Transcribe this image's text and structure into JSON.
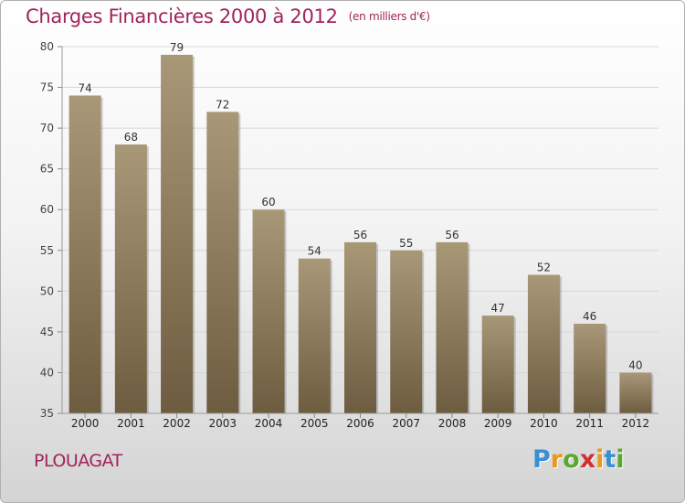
{
  "header": {
    "title": "Charges Financières 2000 à 2012",
    "subtitle": "(en milliers d'€)"
  },
  "commune": "PLOUAGAT",
  "logo": {
    "letters": [
      "P",
      "r",
      "o",
      "x",
      "i",
      "t",
      "i"
    ],
    "colors": [
      "#3a8fd0",
      "#e89a1c",
      "#5aa832",
      "#d23030",
      "#e89a1c",
      "#3a8fd0",
      "#5aa832"
    ]
  },
  "colors": {
    "title": "#a0245a",
    "bar_top": "#a89878",
    "bar_bottom": "#6e5c40"
  },
  "chart_data": {
    "type": "bar",
    "categories": [
      "2000",
      "2001",
      "2002",
      "2003",
      "2004",
      "2005",
      "2006",
      "2007",
      "2008",
      "2009",
      "2010",
      "2011",
      "2012"
    ],
    "values": [
      74,
      68,
      79,
      72,
      60,
      54,
      56,
      55,
      56,
      47,
      52,
      46,
      40
    ],
    "title": "Charges Financières 2000 à 2012",
    "subtitle": "(en milliers d'€)",
    "xlabel": "",
    "ylabel": "",
    "ylim": [
      35,
      80
    ],
    "yticks": [
      35,
      40,
      45,
      50,
      55,
      60,
      65,
      70,
      75,
      80
    ],
    "grid": true,
    "data_labels": true
  }
}
